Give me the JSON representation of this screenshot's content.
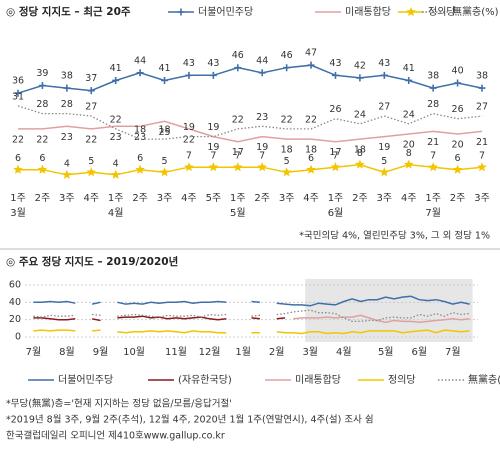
{
  "chart_data": [
    {
      "type": "line",
      "title": "◎ 정당 지지도 – 최근 20주",
      "categories": [
        "1주",
        "2주",
        "3주",
        "4주",
        "1주",
        "2주",
        "3주",
        "4주",
        "5주",
        "1주",
        "2주",
        "3주",
        "4주",
        "1주",
        "2주",
        "3주",
        "4주",
        "1주",
        "2주",
        "3주"
      ],
      "month_labels": [
        "3월",
        null,
        null,
        null,
        "4월",
        null,
        null,
        null,
        null,
        "5월",
        null,
        null,
        null,
        "6월",
        null,
        null,
        null,
        "7월",
        null,
        null
      ],
      "ylim": [
        0,
        60
      ],
      "series": [
        {
          "name": "더불어민주당",
          "color": "#3f6fa8",
          "marker": "plus",
          "values": [
            36,
            39,
            38,
            37,
            41,
            44,
            41,
            43,
            43,
            46,
            44,
            46,
            47,
            43,
            42,
            43,
            41,
            38,
            40,
            38
          ]
        },
        {
          "name": "미래통합당",
          "color": "#e0a0a0",
          "values": [
            22,
            22,
            23,
            22,
            23,
            23,
            25,
            22,
            19,
            17,
            19,
            18,
            18,
            17,
            18,
            19,
            20,
            21,
            20,
            21
          ]
        },
        {
          "name": "정의당",
          "color": "#f2c500",
          "marker": "star",
          "values": [
            6,
            6,
            4,
            5,
            4,
            6,
            5,
            7,
            7,
            7,
            7,
            5,
            6,
            7,
            8,
            5,
            8,
            7,
            6,
            7
          ]
        },
        {
          "name": "無黨층(%)",
          "color": "#888888",
          "dash": true,
          "values": [
            31,
            28,
            28,
            27,
            22,
            18,
            18,
            19,
            19,
            22,
            23,
            22,
            22,
            26,
            24,
            27,
            24,
            28,
            26,
            27
          ]
        }
      ],
      "notes": [
        "*국민의당 4%, 열린민주당 3%, 그 외 정당 1%"
      ]
    },
    {
      "type": "line",
      "title": "◎ 주요 정당 지지도 – 2019/2020년",
      "x": [
        0,
        1,
        2,
        3,
        4,
        5,
        6,
        7,
        8,
        9,
        10,
        11,
        12,
        13,
        14,
        15,
        16,
        17,
        18,
        19,
        20,
        21,
        22,
        23,
        24,
        25,
        26,
        27,
        28,
        29,
        30,
        31,
        32,
        33,
        34,
        35,
        36,
        37,
        38,
        39,
        40,
        41,
        42,
        43,
        44,
        45,
        46,
        47,
        48,
        49,
        50,
        51,
        52
      ],
      "xlim": [
        -1,
        53
      ],
      "xticks": [
        {
          "value": 0,
          "label": "7월"
        },
        {
          "value": 4,
          "label": "8월"
        },
        {
          "value": 8,
          "label": "9월"
        },
        {
          "value": 12,
          "label": "10월"
        },
        {
          "value": 17,
          "label": "11월"
        },
        {
          "value": 21,
          "label": "12월"
        },
        {
          "value": 25,
          "label": "1월"
        },
        {
          "value": 29,
          "label": "2월"
        },
        {
          "value": 33,
          "label": "3월"
        },
        {
          "value": 37,
          "label": "4월"
        },
        {
          "value": 42,
          "label": "5월"
        },
        {
          "value": 46,
          "label": "6월"
        },
        {
          "value": 50,
          "label": "7월"
        }
      ],
      "ylim": [
        0,
        60
      ],
      "yticks": [
        0,
        20,
        40,
        60
      ],
      "grid": true,
      "highlight_x": [
        33,
        52
      ],
      "series": [
        {
          "name": "더불어민주당",
          "color": "#3f6fa8",
          "values": [
            40,
            40,
            41,
            40,
            41,
            39,
            null,
            38,
            40,
            null,
            40,
            38,
            39,
            38,
            40,
            39,
            40,
            40,
            41,
            39,
            40,
            40,
            41,
            40,
            null,
            null,
            41,
            40,
            null,
            39,
            38,
            37,
            37,
            36,
            39,
            38,
            37,
            41,
            44,
            41,
            43,
            43,
            46,
            44,
            46,
            47,
            43,
            42,
            43,
            41,
            38,
            40,
            38
          ]
        },
        {
          "name": "(자유한국당)",
          "color": "#8b1a1a",
          "values": [
            22,
            22,
            21,
            20,
            20,
            21,
            null,
            21,
            19,
            null,
            22,
            23,
            23,
            24,
            22,
            23,
            21,
            22,
            21,
            22,
            23,
            21,
            20,
            21,
            null,
            null,
            22,
            21,
            null,
            21,
            22,
            null,
            null,
            null,
            null,
            null,
            null,
            null,
            null,
            null,
            null,
            null,
            null,
            null,
            null,
            null,
            null,
            null,
            null,
            null,
            null,
            null,
            null
          ]
        },
        {
          "name": "미래통합당",
          "color": "#e0a0a0",
          "values": [
            null,
            null,
            null,
            null,
            null,
            null,
            null,
            null,
            null,
            null,
            null,
            null,
            null,
            null,
            null,
            null,
            null,
            null,
            null,
            null,
            null,
            null,
            null,
            null,
            null,
            null,
            null,
            null,
            null,
            null,
            null,
            21,
            22,
            22,
            22,
            23,
            22,
            23,
            23,
            25,
            22,
            19,
            17,
            19,
            18,
            18,
            17,
            18,
            19,
            20,
            21,
            20,
            21
          ]
        },
        {
          "name": "정의당",
          "color": "#f2c500",
          "values": [
            7,
            8,
            7,
            8,
            8,
            7,
            null,
            7,
            8,
            null,
            6,
            5,
            6,
            6,
            7,
            6,
            7,
            6,
            5,
            7,
            6,
            6,
            5,
            5,
            null,
            null,
            5,
            5,
            null,
            6,
            5,
            5,
            4,
            6,
            6,
            4,
            5,
            4,
            6,
            5,
            7,
            7,
            7,
            7,
            5,
            6,
            7,
            8,
            5,
            8,
            7,
            6,
            7
          ]
        },
        {
          "name": "無黨층(%)",
          "color": "#888888",
          "dash": true,
          "values": [
            24,
            23,
            25,
            24,
            24,
            25,
            null,
            26,
            25,
            null,
            24,
            25,
            26,
            25,
            24,
            23,
            25,
            24,
            24,
            25,
            23,
            26,
            25,
            26,
            null,
            null,
            24,
            25,
            null,
            26,
            27,
            29,
            30,
            31,
            28,
            28,
            27,
            22,
            18,
            18,
            19,
            19,
            22,
            23,
            22,
            22,
            26,
            24,
            27,
            24,
            28,
            26,
            27
          ]
        }
      ],
      "notes": [
        "*무당(無黨)층='현재 지지하는 정당 없음/모름/응답거절'",
        "*2019년 8월 3주, 9월 2주(추석), 12월 4주, 2020년 1월 1주(연말연시), 4주(설) 조사 쉼",
        "한국갤럽데일리 오피니언 제410호www.gallup.co.kr"
      ]
    }
  ]
}
